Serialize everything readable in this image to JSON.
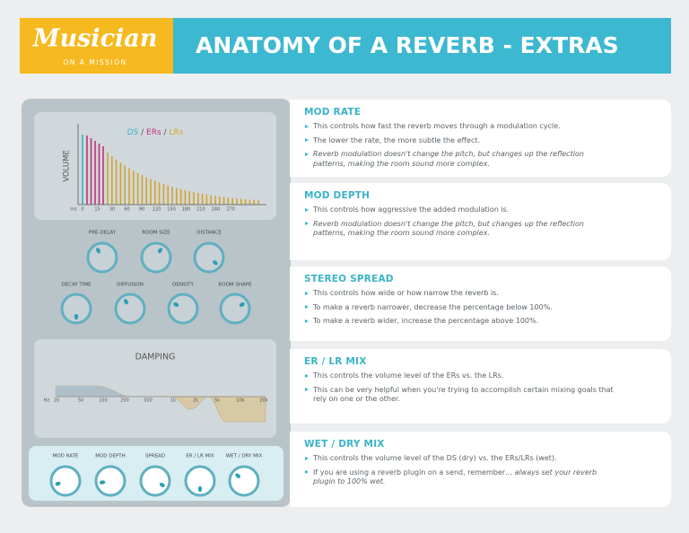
{
  "header": {
    "logo": "Musician",
    "tagline": "ON A MISSION",
    "title": "ANATOMY OF A REVERB - EXTRAS"
  },
  "panel": {
    "graph": {
      "legend": [
        "DS",
        "ERs",
        "LRs"
      ],
      "y_label": "VOLUME",
      "x_labels": [
        "ms",
        "0",
        "15",
        "30",
        "60",
        "90",
        "120",
        "150",
        "180",
        "210",
        "240",
        "270"
      ]
    },
    "knobs_top": [
      "PRE-DELAY",
      "ROOM SIZE",
      "DISTANCE"
    ],
    "knobs_mid": [
      "DECAY TIME",
      "DIFFUSION",
      "DENSITY",
      "ROOM SHAPE"
    ],
    "damping": {
      "title": "DAMPING",
      "x_labels": [
        "Hz",
        "20",
        "50",
        "100",
        "200",
        "500",
        "1k",
        "2k",
        "5k",
        "10k",
        "20k"
      ]
    },
    "knobs_bottom": [
      "MOD RATE",
      "MOD DEPTH",
      "SPREAD",
      "ER / LR MIX",
      "WET / DRY MIX"
    ]
  },
  "sections": [
    {
      "title": "MOD RATE",
      "bullets": [
        {
          "text": "This controls how fast the reverb moves through a modulation cycle."
        },
        {
          "text": "The lower the rate, the more subtle the effect."
        },
        {
          "em": "Reverb modulation doesn't change the pitch, but changes up the reflection patterns, making the room sound more complex."
        }
      ]
    },
    {
      "title": "MOD DEPTH",
      "bullets": [
        {
          "text": "This controls how aggressive the added modulation is."
        },
        {
          "em": "Reverb modulation doesn't change the pitch, but changes up the reflection patterns, making the room sound more complex."
        }
      ]
    },
    {
      "title": "STEREO SPREAD",
      "bullets": [
        {
          "text": "This controls how wide or how narrow the reverb is."
        },
        {
          "text": "To make a reverb narrower, decrease the percentage below 100%."
        },
        {
          "text": "To make a reverb wider, increase the percentage above 100%."
        }
      ]
    },
    {
      "title": "ER / LR MIX",
      "bullets": [
        {
          "text": "This controls the volume level of the ERs vs. the LRs."
        },
        {
          "text": "This can be very helpful when you're trying to accomplish certain mixing goals that rely on one or the other."
        }
      ]
    },
    {
      "title": "WET / DRY MIX",
      "bullets": [
        {
          "text": "This controls the volume level of the DS (dry) vs. the ERs/LRs (wet)."
        },
        {
          "text": "If you are using a reverb plugin on a send, remember… ",
          "em": "always set your reverb plugin to 100% wet."
        }
      ]
    }
  ]
}
